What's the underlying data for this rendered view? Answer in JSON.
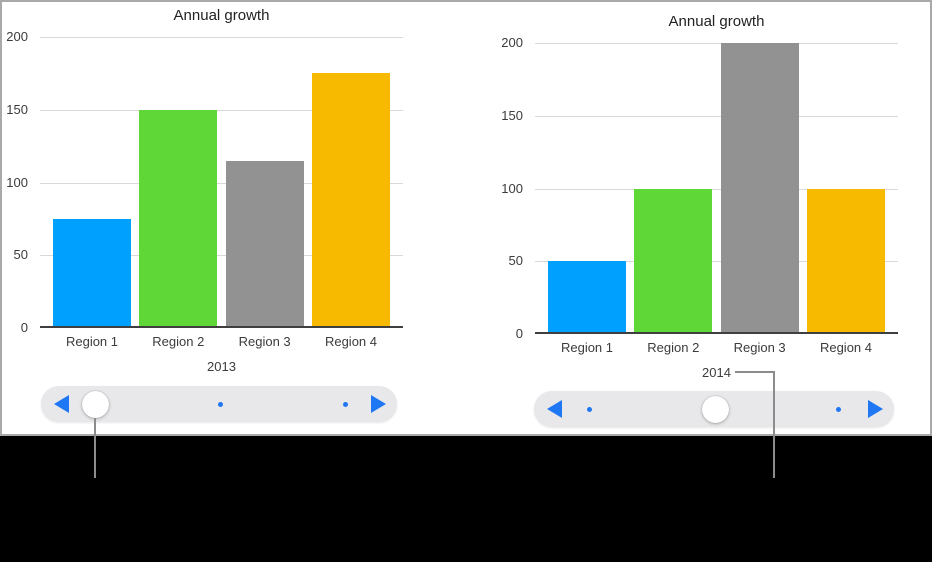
{
  "ui": {
    "accent_blue": "#2077f4",
    "slider_track": "#e8e8ea",
    "callout_line": "#8c8c8c",
    "panel_border": "#a9a9a9",
    "black_band": "#000000",
    "gridline_color": "#d9d9d9",
    "axis_color": "#3f3f3f"
  },
  "chart_data": [
    {
      "type": "bar",
      "title": "Annual growth",
      "year": "2013",
      "categories": [
        "Region 1",
        "Region 2",
        "Region 3",
        "Region 4"
      ],
      "values": [
        75,
        150,
        115,
        175
      ],
      "bar_colors": [
        "#00a0fe",
        "#5fd736",
        "#929292",
        "#f7ba00"
      ],
      "ylim": [
        0,
        200
      ],
      "y_ticks": [
        0,
        50,
        100,
        150,
        200
      ],
      "grid": true,
      "legend": "none",
      "slider": {
        "thumb_fraction": 0.152,
        "dot_fractions": [
          0.504,
          0.855
        ],
        "prev_arrow": "left-triangle",
        "next_arrow": "right-triangle"
      }
    },
    {
      "type": "bar",
      "title": "Annual growth",
      "year": "2014",
      "categories": [
        "Region 1",
        "Region 2",
        "Region 3",
        "Region 4"
      ],
      "values": [
        50,
        100,
        200,
        100
      ],
      "bar_colors": [
        "#00a0fe",
        "#5fd736",
        "#929292",
        "#f7ba00"
      ],
      "ylim": [
        0,
        200
      ],
      "y_ticks": [
        0,
        50,
        100,
        150,
        200
      ],
      "grid": true,
      "legend": "none",
      "slider": {
        "thumb_fraction": 0.503,
        "dot_fractions": [
          0.153,
          0.847
        ],
        "prev_arrow": "left-triangle",
        "next_arrow": "right-triangle"
      }
    }
  ]
}
